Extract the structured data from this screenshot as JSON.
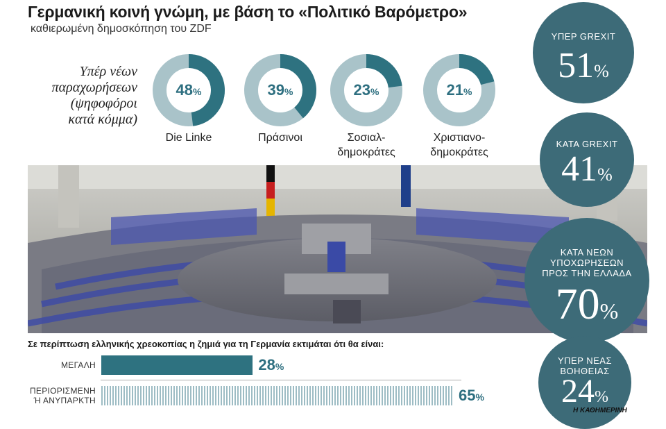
{
  "header": {
    "title": "Γερμανική κοινή γνώμη, με βάση το «Πολιτικό Βαρόμετρο»",
    "subtitle": "καθιερωμένη δημοσκόπηση του ZDF"
  },
  "donut_section": {
    "label_lines": [
      "Υπέρ νέων",
      "παραχωρήσεων",
      "(ψηφοφόροι",
      "κατά κόμμα)"
    ]
  },
  "percent_sign": "%",
  "colors": {
    "accent": "#2e7280",
    "light": "#a9c3c9",
    "circle": "#3d6b78"
  },
  "chart_data": [
    {
      "type": "pie",
      "categories": [
        "Die Linke",
        "Πράσινοι",
        "Σοσιαλ-δημοκράτες",
        "Χριστιανο-δημοκράτες"
      ],
      "category_lines": [
        [
          "Die Linke"
        ],
        [
          "Πράσινοι"
        ],
        [
          "Σοσιαλ-",
          "δημοκράτες"
        ],
        [
          "Χριστιανο-",
          "δημοκράτες"
        ]
      ],
      "values": [
        48,
        39,
        23,
        21
      ],
      "title": "Υπέρ νέων παραχωρήσεων (ψηφοφόροι κατά κόμμα)"
    },
    {
      "type": "bar",
      "title": "Σε περίπτωση ελληνικής χρεοκοπίας η ζημιά για τη Γερμανία εκτιμάται ότι θα είναι:",
      "categories": [
        "ΜΕΓΑΛΗ",
        "ΠΕΡΙΟΡΙΣΜΕΝΗ Ή ΑΝΥΠΑΡΚΤΗ"
      ],
      "category_lines": [
        [
          "ΜΕΓΑΛΗ"
        ],
        [
          "ΠΕΡΙΟΡΙΣΜΕΝΗ",
          "Ή ΑΝΥΠΑΡΚΤΗ"
        ]
      ],
      "values": [
        28,
        65
      ],
      "ylim": [
        0,
        100
      ]
    },
    {
      "type": "table",
      "categories": [
        "ΥΠΕΡ GREXIT",
        "ΚΑΤΑ GREXIT",
        "ΚΑΤΑ ΝΕΩΝ ΥΠΟΧΩΡΗΣΕΩΝ ΠΡΟΣ ΤΗΝ ΕΛΛΑΔΑ",
        "ΥΠΕΡ ΝΕΑΣ ΒΟΗΘΕΙΑΣ"
      ],
      "category_lines": [
        [
          "ΥΠΕΡ GREXIT"
        ],
        [
          "ΚΑΤΑ GREXIT"
        ],
        [
          "ΚΑΤΑ ΝΕΩΝ",
          "ΥΠΟΧΩΡΗΣΕΩΝ",
          "ΠΡΟΣ ΤΗΝ ΕΛΛΑΔΑ"
        ],
        [
          "ΥΠΕΡ ΝΕΑΣ",
          "ΒΟΗΘΕΙΑΣ"
        ]
      ],
      "values": [
        51,
        41,
        70,
        24
      ]
    }
  ],
  "footer": {
    "brand": "Η ΚΑΘΗΜΕΡΙΝΗ"
  }
}
